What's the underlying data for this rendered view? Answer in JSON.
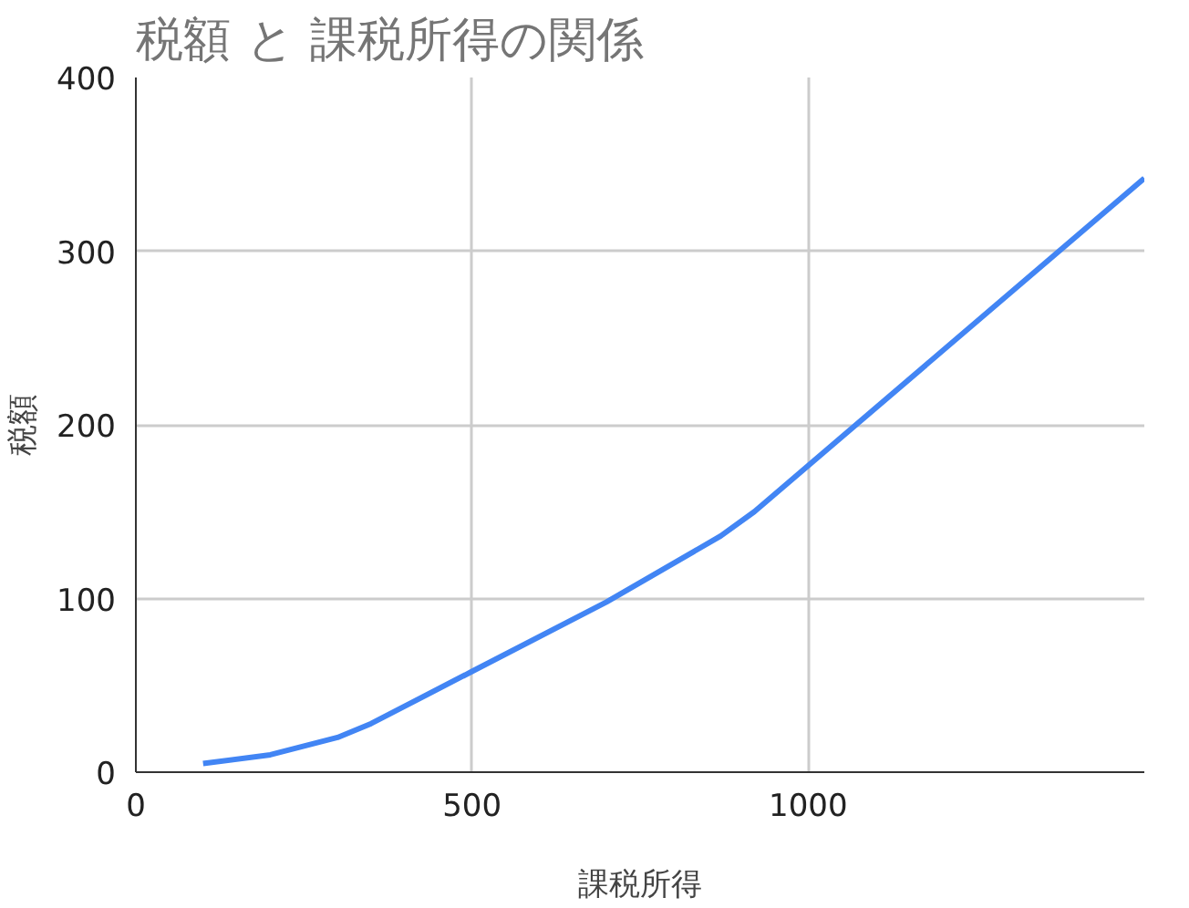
{
  "chart_data": {
    "type": "line",
    "title": "税額 と 課税所得の関係",
    "xlabel": "課税所得",
    "ylabel": "税額",
    "x": [
      100,
      200,
      300,
      350,
      500,
      700,
      870,
      920,
      1500
    ],
    "series": [
      {
        "color": "#4285f4",
        "values": [
          5,
          10,
          20,
          28,
          58,
          98,
          136,
          150,
          342
        ]
      }
    ],
    "xlim": [
      0,
      1500
    ],
    "xticks": [
      0,
      500,
      1000
    ],
    "ylim": [
      0,
      400
    ],
    "yticks": [
      0,
      100,
      200,
      300,
      400
    ],
    "grid": true,
    "marker": "none",
    "line_style": "solid"
  }
}
